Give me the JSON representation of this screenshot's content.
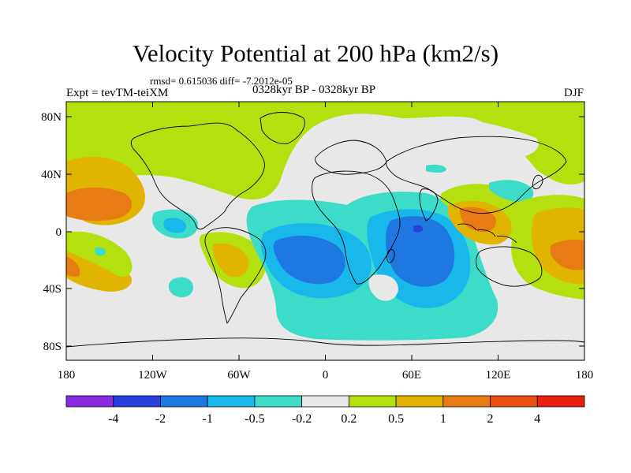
{
  "title": "Velocity Potential at 200 hPa (km2/s)",
  "stats": "rmsd= 0.615036 diff= -7.2012e-05",
  "left_string": "Expt = tevTM-teiXM",
  "center_string": "0328kyr BP - 0328kyr BP",
  "right_string": "DJF",
  "map": {
    "projection": "cylindrical equidistant",
    "lat_ticks": [
      "80N",
      "40N",
      "0",
      "40S",
      "80S"
    ],
    "lon_ticks": [
      "180",
      "120W",
      "60W",
      "0",
      "60E",
      "120E",
      "180"
    ]
  },
  "colorbar": {
    "colors": [
      "#8a2be2",
      "#2840e0",
      "#1e78e0",
      "#18b8ea",
      "#3cdcc8",
      "#e8e8e8",
      "#b4e010",
      "#e0b400",
      "#e87c14",
      "#e85014",
      "#e82010"
    ],
    "labels": [
      "-4",
      "-2",
      "-1",
      "-0.5",
      "-0.2",
      "0.2",
      "0.5",
      "1",
      "2",
      "4"
    ]
  }
}
